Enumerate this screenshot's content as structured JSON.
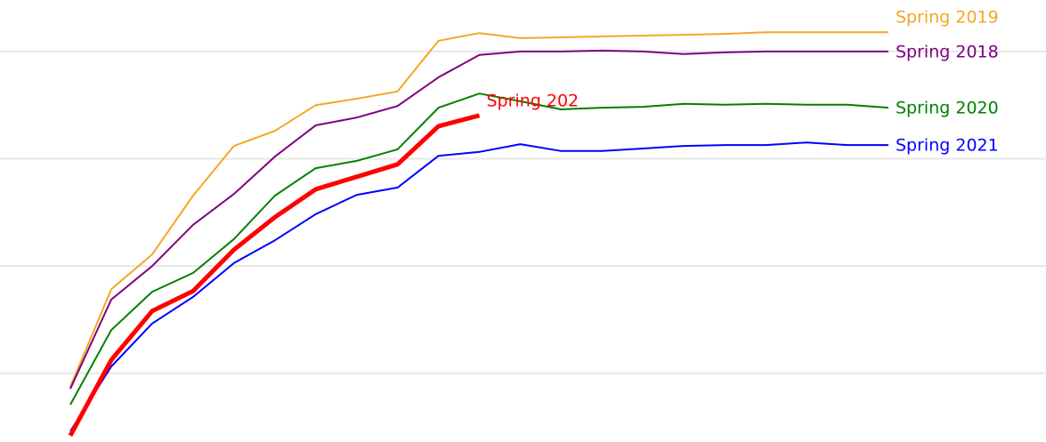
{
  "chart_data": {
    "type": "line",
    "categories": [
      null,
      null,
      null,
      null,
      null,
      null,
      null,
      null,
      null,
      null,
      null,
      null,
      null,
      null,
      null,
      null,
      null,
      null,
      null,
      null,
      null
    ],
    "ylim": [
      9,
      112
    ],
    "yticks": [
      25,
      50,
      75,
      100
    ],
    "grid": true,
    "series": [
      {
        "name": "Spring 2019",
        "color": "#f5a623",
        "values": [
          21.9,
          44.6,
          52.7,
          66.4,
          78.0,
          81.5,
          87.5,
          89.0,
          90.7,
          102.5,
          104.3,
          103.1,
          103.3,
          103.5,
          103.7,
          103.9,
          104.1,
          104.5,
          104.5,
          104.5,
          104.5
        ]
      },
      {
        "name": "Spring 2018",
        "color": "#800080",
        "values": [
          21.4,
          42.2,
          50.0,
          59.6,
          66.8,
          75.5,
          82.8,
          84.6,
          87.3,
          94.0,
          99.2,
          100.0,
          100.0,
          100.2,
          100.0,
          99.4,
          99.8,
          100.0,
          100.0,
          100.0,
          100.0
        ]
      },
      {
        "name": "Spring 2020",
        "color": "#008000",
        "values": [
          17.7,
          35.1,
          44.0,
          48.4,
          56.3,
          66.4,
          72.8,
          74.5,
          77.2,
          86.9,
          90.2,
          88.4,
          86.5,
          86.9,
          87.1,
          87.8,
          87.6,
          87.8,
          87.6,
          87.6,
          86.9
        ]
      },
      {
        "name": "Spring 2021",
        "color": "#0000ff",
        "values": [
          11.5,
          26.6,
          36.6,
          42.8,
          50.7,
          56.0,
          62.1,
          66.6,
          68.3,
          75.7,
          76.6,
          78.4,
          76.8,
          76.8,
          77.4,
          78.0,
          78.2,
          78.2,
          78.8,
          78.2,
          78.2
        ]
      },
      {
        "name": "Spring 202",
        "color": "#ff0000",
        "values": [
          10.5,
          28.1,
          39.5,
          44.2,
          53.8,
          61.4,
          67.9,
          70.8,
          73.7,
          82.6,
          85.1,
          null,
          null,
          null,
          null,
          null,
          null,
          null,
          null,
          null,
          null
        ]
      }
    ]
  }
}
